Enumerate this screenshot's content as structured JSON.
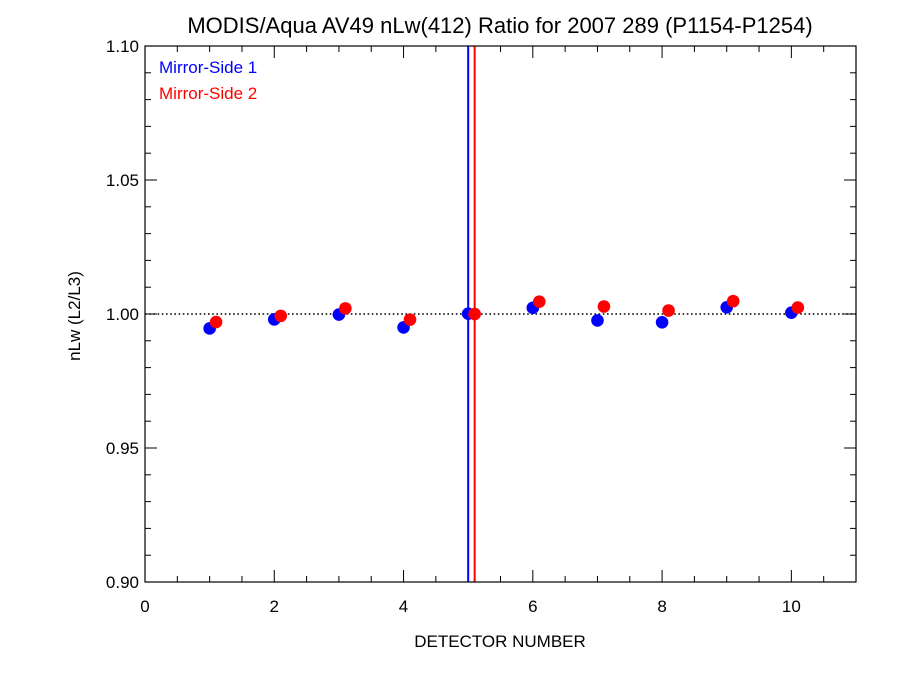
{
  "chart_data": {
    "type": "scatter",
    "title": "MODIS/Aqua AV49 nLw(412) Ratio for 2007 289 (P1154-P1254)",
    "xlabel": "DETECTOR NUMBER",
    "ylabel": "nLw (L2/L3)",
    "xlim": [
      0,
      11
    ],
    "ylim": [
      0.9,
      1.1
    ],
    "x_ticks": [
      0,
      2,
      4,
      6,
      8,
      10
    ],
    "x_minor_step": 0.5,
    "y_ticks": [
      0.9,
      0.95,
      1.0,
      1.05,
      1.1
    ],
    "y_tick_labels": [
      "0.90",
      "0.95",
      "1.00",
      "1.05",
      "1.10"
    ],
    "y_minor_step": 0.01,
    "reference_line": {
      "y": 1.0,
      "style": "dotted",
      "color": "#000000"
    },
    "vertical_lines": [
      {
        "x": 5.0,
        "color": "#0000ff"
      },
      {
        "x": 5.1,
        "color": "#ff0000"
      }
    ],
    "legend_position": "top-left",
    "series": [
      {
        "name": "Mirror-Side 1",
        "color": "#0000ff",
        "x": [
          1,
          2,
          3,
          4,
          5,
          6,
          7,
          8,
          9,
          10
        ],
        "y": [
          0.9946,
          0.998,
          0.9998,
          0.995,
          1.0001,
          1.0023,
          0.9976,
          0.9969,
          1.0025,
          1.0005
        ]
      },
      {
        "name": "Mirror-Side 2",
        "color": "#ff0000",
        "x": [
          1.1,
          2.1,
          3.1,
          4.1,
          5.1,
          6.1,
          7.1,
          8.1,
          9.1,
          10.1
        ],
        "y": [
          0.997,
          0.9993,
          1.0021,
          0.9979,
          1.0,
          1.0046,
          1.0028,
          1.0013,
          1.0048,
          1.0024
        ]
      }
    ]
  }
}
